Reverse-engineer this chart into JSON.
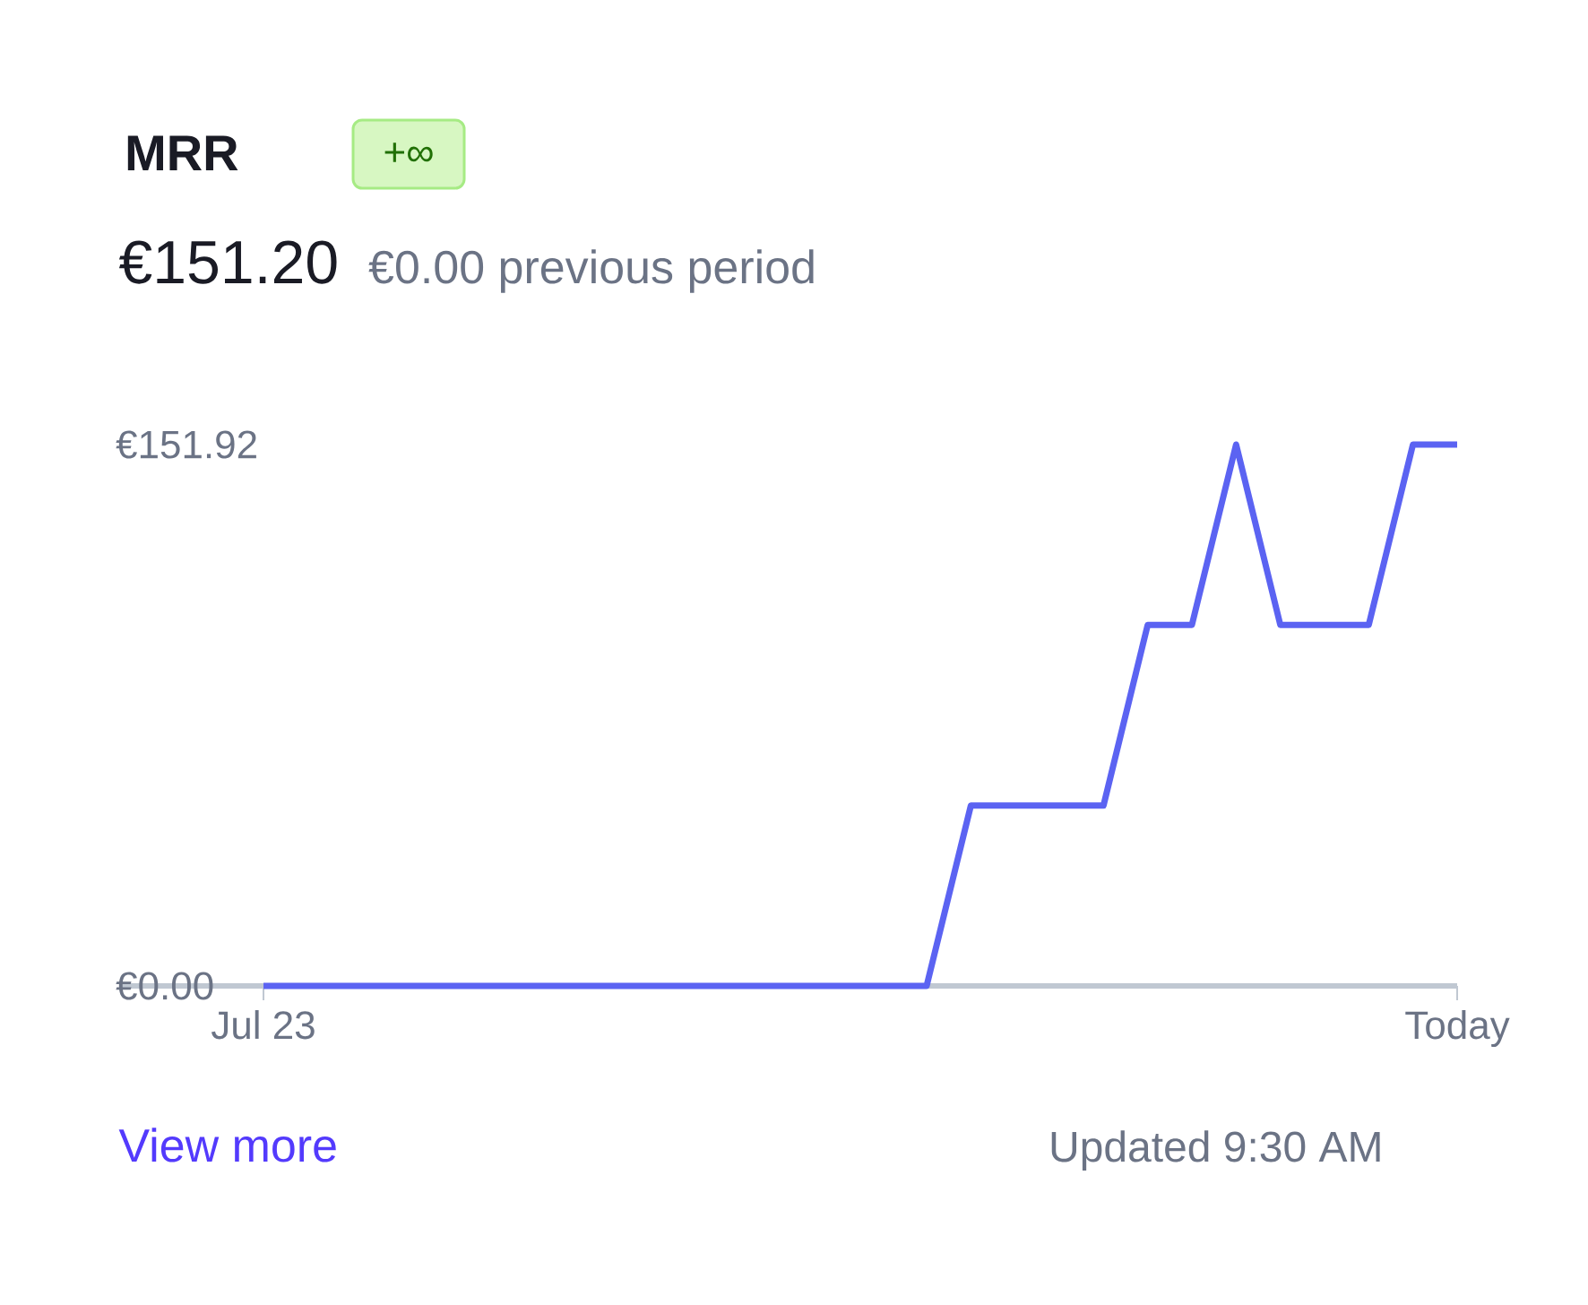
{
  "chart_data": {
    "type": "line",
    "title": "MRR",
    "subtitle": "€151.20",
    "annotations": [
      "€0.00 previous period",
      "+∞",
      "View more",
      "Updated 9:30 AM"
    ],
    "categories": [
      "Jul 23",
      null,
      null,
      null,
      null,
      null,
      null,
      null,
      null,
      null,
      null,
      null,
      null,
      null,
      null,
      null,
      null,
      null,
      null,
      null,
      null,
      null,
      null,
      null,
      null,
      null,
      null,
      "Today"
    ],
    "values": [
      0,
      0,
      0,
      0,
      0,
      0,
      0,
      0,
      0,
      0,
      0,
      0,
      0,
      0,
      0,
      0,
      50.6,
      50.6,
      50.6,
      50.6,
      101.3,
      101.3,
      151.92,
      101.3,
      101.3,
      101.3,
      151.92,
      151.92
    ],
    "color": "#5b63f2",
    "ylim": [
      0,
      151.92
    ],
    "yticks": [
      {
        "value": 0,
        "label": "€0.00"
      },
      {
        "value": 151.92,
        "label": "€151.92"
      }
    ],
    "line_style": "solid",
    "marker": "none"
  }
}
